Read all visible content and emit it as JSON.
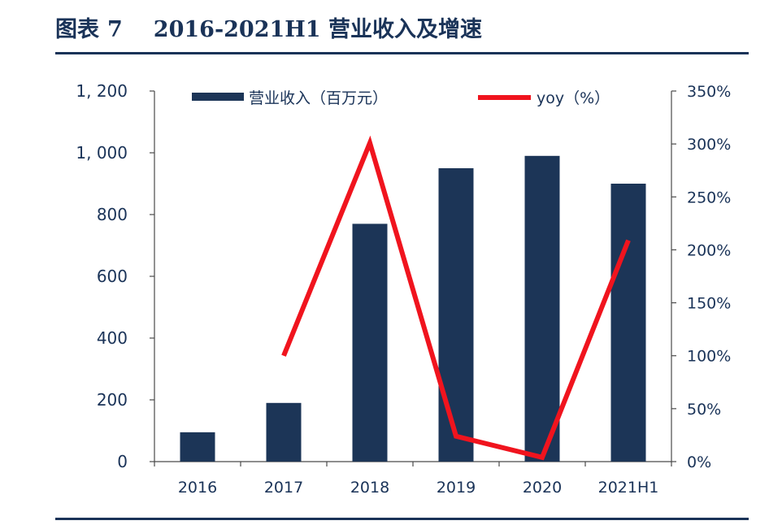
{
  "header": {
    "figure_label": "图表",
    "figure_number": "7",
    "figure_title": "2016-2021H1 营业收入及增速"
  },
  "chart_data": {
    "type": "bar+line",
    "categories": [
      "2016",
      "2017",
      "2018",
      "2019",
      "2020",
      "2021H1"
    ],
    "series": [
      {
        "name": "营业收入（百万元）",
        "type": "bar",
        "axis": "left",
        "color": "#1c3557",
        "values": [
          95,
          190,
          770,
          950,
          990,
          900
        ]
      },
      {
        "name": "yoy（%）",
        "type": "line",
        "axis": "right",
        "color": "#f0141e",
        "values": [
          null,
          100,
          301,
          24,
          4,
          209
        ]
      }
    ],
    "left_axis": {
      "ylim": [
        0,
        1200
      ],
      "ticks": [
        0,
        200,
        400,
        600,
        800,
        1000,
        1200
      ],
      "tick_labels": [
        "0",
        "200",
        "400",
        "600",
        "800",
        "1, 000",
        "1, 200"
      ]
    },
    "right_axis": {
      "ylim": [
        0,
        350
      ],
      "ticks": [
        0,
        50,
        100,
        150,
        200,
        250,
        300,
        350
      ],
      "tick_labels": [
        "0%",
        "50%",
        "100%",
        "150%",
        "200%",
        "250%",
        "300%",
        "350%"
      ]
    },
    "legend": {
      "position": "top",
      "labels": [
        "营业收入（百万元）",
        "yoy（%）"
      ]
    }
  }
}
